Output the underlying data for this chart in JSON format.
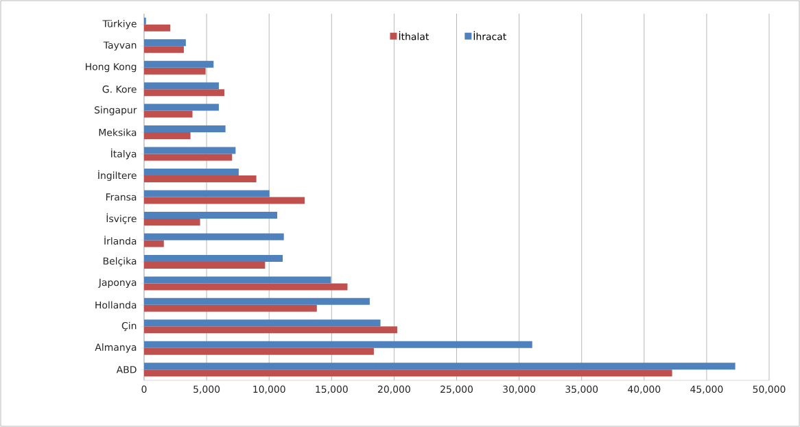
{
  "chart_data": {
    "type": "bar",
    "orientation": "horizontal",
    "categories": [
      "Türkiye",
      "Tayvan",
      "Hong Kong",
      "G. Kore",
      "Singapur",
      "Meksika",
      "İtalya",
      "İngiltere",
      "Fransa",
      "İsviçre",
      "İrlanda",
      "Belçika",
      "Japonya",
      "Hollanda",
      "Çin",
      "Almanya",
      "ABD"
    ],
    "series": [
      {
        "name": "İthalat",
        "color": "#c0504d",
        "values": [
          2100,
          3180,
          4920,
          6420,
          3870,
          3710,
          7040,
          8980,
          12850,
          4480,
          1580,
          9680,
          16270,
          13820,
          20250,
          18380,
          42240
        ]
      },
      {
        "name": "İhracat",
        "color": "#4f81bd",
        "values": [
          150,
          3340,
          5560,
          5980,
          5980,
          6510,
          7320,
          7570,
          10030,
          10650,
          11180,
          11090,
          14950,
          18050,
          18910,
          31050,
          47290
        ]
      }
    ],
    "xlim": [
      0,
      50000
    ],
    "xticks": [
      {
        "value": 0,
        "label": "0"
      },
      {
        "value": 5000,
        "label": "5,000"
      },
      {
        "value": 10000,
        "label": "10,000"
      },
      {
        "value": 15000,
        "label": "15,000"
      },
      {
        "value": 20000,
        "label": "20,000"
      },
      {
        "value": 25000,
        "label": "25,000"
      },
      {
        "value": 30000,
        "label": "30,000"
      },
      {
        "value": 35000,
        "label": "35,000"
      },
      {
        "value": 40000,
        "label": "40,000"
      },
      {
        "value": 45000,
        "label": "45,000"
      },
      {
        "value": 50000,
        "label": "50,000"
      }
    ],
    "grid": "x",
    "legend": "top right"
  }
}
